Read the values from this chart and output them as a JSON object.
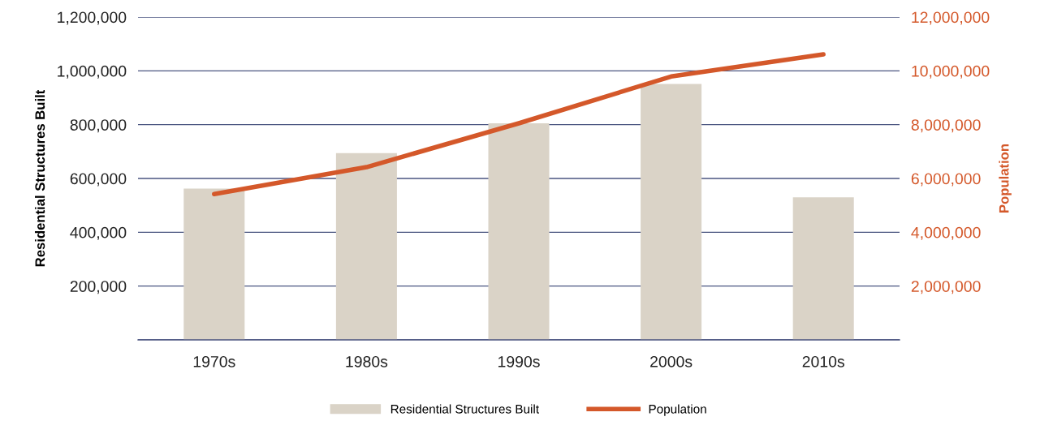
{
  "chart_data": {
    "type": "bar",
    "ylabel": "Residential Structures Built",
    "y2label": "Population",
    "categories": [
      "1970s",
      "1980s",
      "1990s",
      "2000s",
      "2010s"
    ],
    "series": [
      {
        "name": "Residential Structures Built",
        "color": "#dad3c7",
        "values": [
          562000,
          694000,
          805000,
          951000,
          530000
        ]
      },
      {
        "name": "Population",
        "type": "line",
        "axis": "y2",
        "color": "#d4582a",
        "values": [
          5420000,
          6420000,
          8050000,
          9790000,
          10610000
        ]
      }
    ],
    "ylim": [
      0,
      1200000
    ],
    "yticks": [
      {
        "value": 0,
        "label": null
      },
      {
        "value": 200000,
        "label": "200,000"
      },
      {
        "value": 400000,
        "label": "400,000"
      },
      {
        "value": 600000,
        "label": "600,000"
      },
      {
        "value": 800000,
        "label": "800,000"
      },
      {
        "value": 1000000,
        "label": "1,000,000"
      },
      {
        "value": 1200000,
        "label": "1,200,000"
      }
    ],
    "y2lim": [
      0,
      12000000
    ],
    "y2ticks": [
      {
        "value": 0,
        "label": null
      },
      {
        "value": 2000000,
        "label": "2,000,000"
      },
      {
        "value": 4000000,
        "label": "4,000,000"
      },
      {
        "value": 6000000,
        "label": "6,000,000"
      },
      {
        "value": 8000000,
        "label": "8,000,000"
      },
      {
        "value": 10000000,
        "label": "10,000,000"
      },
      {
        "value": 12000000,
        "label": "12,000,000"
      }
    ],
    "grid": "y",
    "legend": "bottom",
    "line_style": "solid",
    "marker": "none"
  }
}
